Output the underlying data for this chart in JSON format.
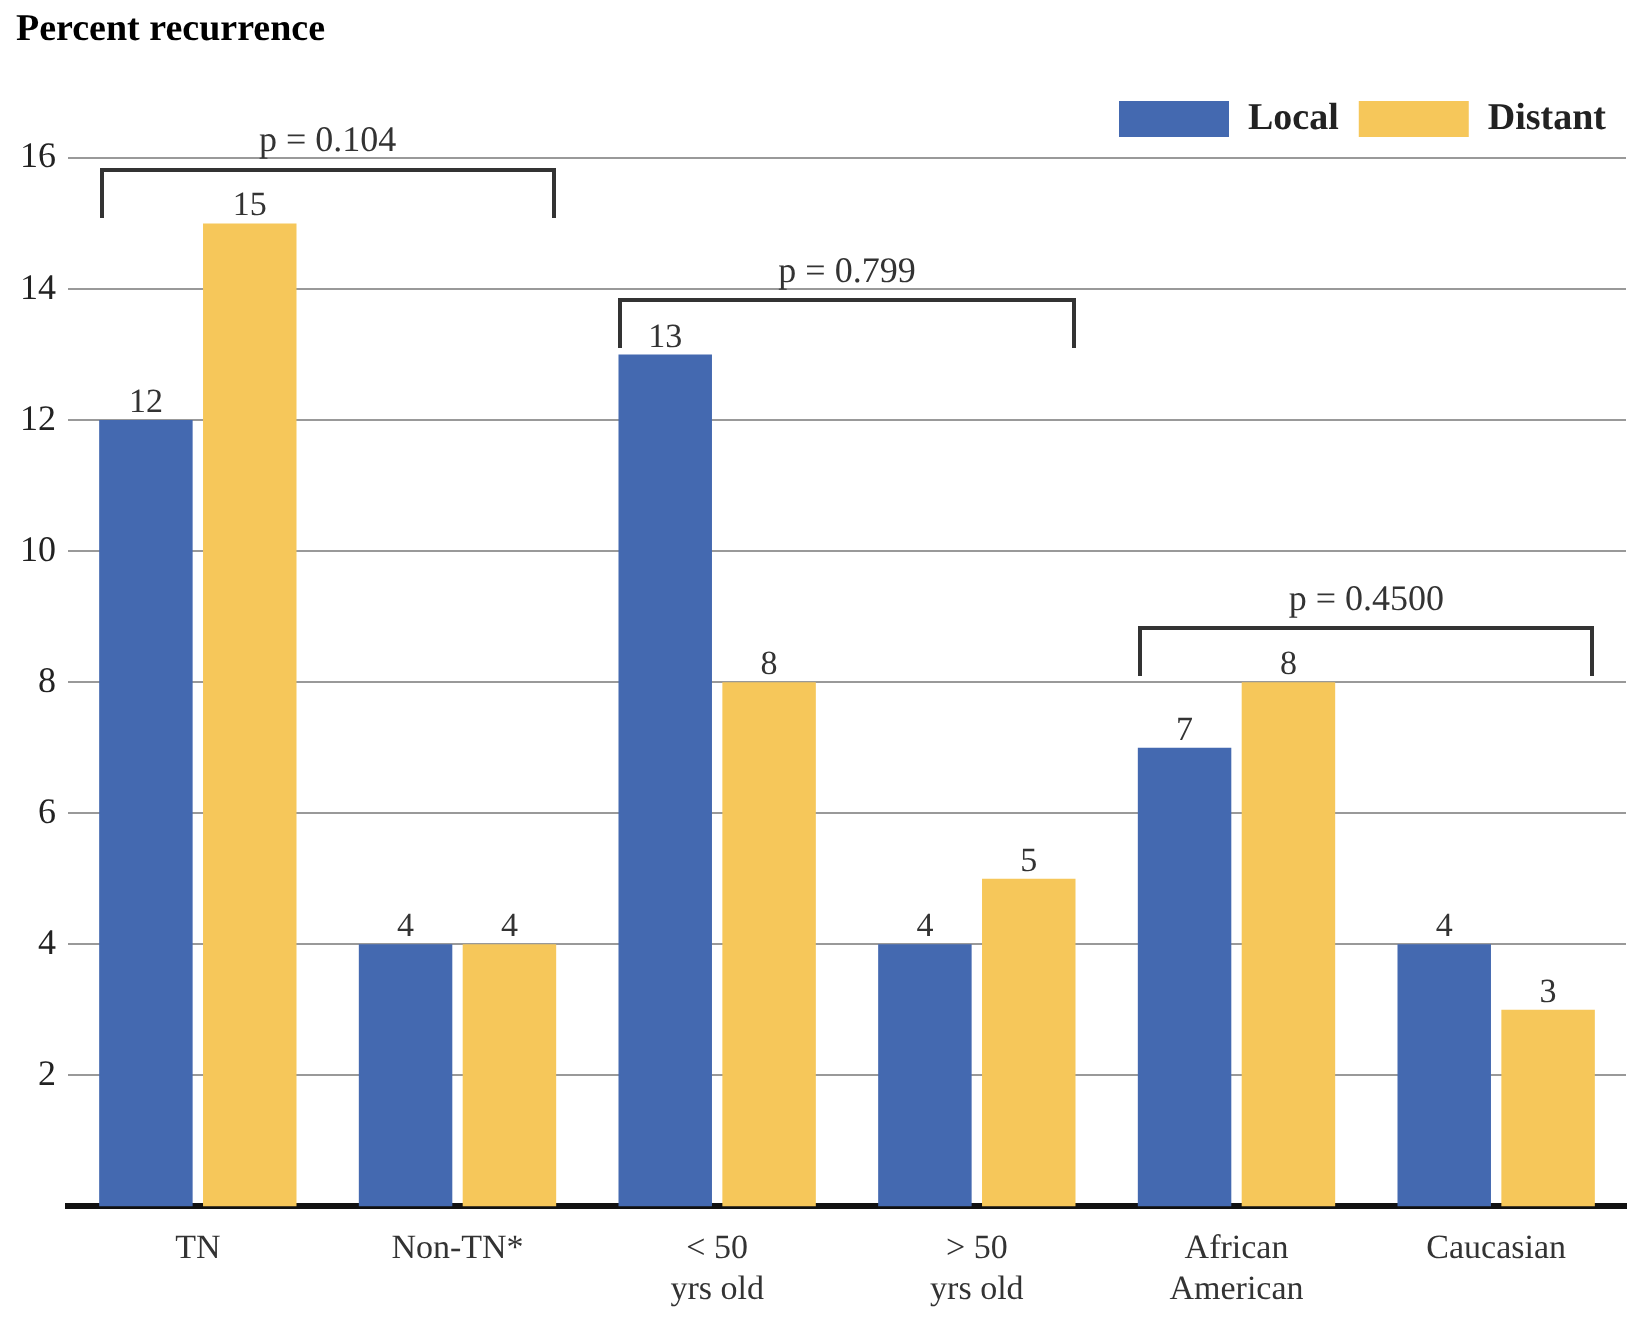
{
  "chart_data": {
    "type": "bar",
    "ylabel": "Percent recurrence",
    "categories": [
      "TN",
      "Non-TN*",
      "< 50\nyrs old",
      "> 50\nyrs old",
      "African\nAmerican",
      "Caucasian"
    ],
    "series": [
      {
        "name": "Local",
        "color": "#4469b0",
        "values": [
          12,
          4,
          13,
          4,
          7,
          4
        ]
      },
      {
        "name": "Distant",
        "color": "#f6c75a",
        "values": [
          15,
          4,
          8,
          5,
          8,
          3
        ]
      }
    ],
    "ylim": [
      0,
      16
    ],
    "yticks": [
      2,
      4,
      6,
      8,
      10,
      12,
      14,
      16
    ],
    "grid": "y",
    "legend": "top right",
    "data_labels": true,
    "annotations": [
      "p = 0.104",
      "p = 0.799",
      "p = 0.4500"
    ]
  }
}
